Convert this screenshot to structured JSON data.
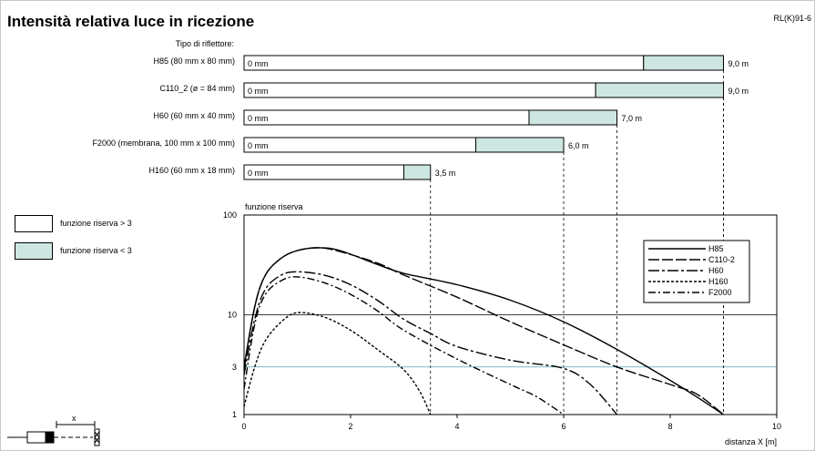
{
  "title": "Intensità relativa luce in ricezione",
  "code": "RL(K)91-6",
  "reflector_heading": "Tipo di riflettore:",
  "legend": {
    "high": "funzione riserva > 3",
    "low": "funzione riserva < 3"
  },
  "colors": {
    "reserve_low": "#cde6e1",
    "threshold_line": "#4aa3b8"
  },
  "range_bars": [
    {
      "name": "H85 (80 mm x 80 mm)",
      "start": "0 mm",
      "end_label": "9,0 m",
      "max_m": 9.0,
      "reserve3_m": 7.5
    },
    {
      "name": "C110_2 (ø = 84 mm)",
      "start": "0 mm",
      "end_label": "9,0 m",
      "max_m": 9.0,
      "reserve3_m": 6.6
    },
    {
      "name": "H60 (60 mm x 40 mm)",
      "start": "0 mm",
      "end_label": "7,0 m",
      "max_m": 7.0,
      "reserve3_m": 5.35
    },
    {
      "name": "F2000 (membrana, 100 mm x 100 mm)",
      "start": "0 mm",
      "end_label": "6,0 m",
      "max_m": 6.0,
      "reserve3_m": 4.35
    },
    {
      "name": "H160 (60 mm x 18 mm)",
      "start": "0 mm",
      "end_label": "3,5 m",
      "max_m": 3.5,
      "reserve3_m": 3.0
    }
  ],
  "chart_data": {
    "type": "line",
    "ylabel": "funzione riserva",
    "xlabel": "distanza X [m]",
    "xlim": [
      0,
      10
    ],
    "ylim": [
      1,
      100
    ],
    "yscale": "log",
    "xticks": [
      0,
      2,
      4,
      6,
      8,
      10
    ],
    "yticks": [
      1,
      3,
      10,
      100
    ],
    "threshold": 3,
    "legend_position": "top-right",
    "series": [
      {
        "name": "H85",
        "dash": "",
        "x": [
          0,
          0.2,
          0.4,
          0.7,
          1.0,
          1.4,
          1.8,
          2.5,
          3.0,
          4.0,
          5.0,
          6.0,
          7.0,
          8.0,
          8.5,
          9.0
        ],
        "y": [
          3,
          12,
          25,
          37,
          44,
          47,
          44,
          32,
          26,
          20,
          14,
          8.5,
          4.5,
          2.2,
          1.5,
          1
        ]
      },
      {
        "name": "C110-2",
        "dash": "12,3",
        "x": [
          0,
          0.2,
          0.4,
          0.7,
          1.0,
          1.4,
          1.8,
          2.5,
          3.0,
          4.0,
          5.0,
          6.0,
          7.0,
          8.0,
          8.5,
          9.0
        ],
        "y": [
          2.8,
          12,
          25,
          37,
          44,
          47,
          43,
          33,
          25,
          15,
          8.5,
          5,
          3,
          2,
          1.6,
          1
        ]
      },
      {
        "name": "H60",
        "dash": "12,3,3,3",
        "x": [
          0,
          0.2,
          0.4,
          0.7,
          1.0,
          1.5,
          2.0,
          2.5,
          3.0,
          3.5,
          4.0,
          5.0,
          6.0,
          6.5,
          7.0
        ],
        "y": [
          2.5,
          9,
          18,
          25,
          27,
          25,
          20,
          14,
          9,
          6.5,
          4.8,
          3.5,
          2.9,
          2,
          1
        ]
      },
      {
        "name": "H160",
        "dash": "3,2",
        "x": [
          0,
          0.2,
          0.4,
          0.7,
          1.0,
          1.5,
          2.0,
          2.5,
          3.0,
          3.3,
          3.5
        ],
        "y": [
          1.2,
          3,
          5.5,
          8.5,
          10.5,
          9.5,
          7,
          4.5,
          2.8,
          1.7,
          1
        ]
      },
      {
        "name": "F2000",
        "dash": "8,3,2,3",
        "x": [
          0,
          0.2,
          0.4,
          0.7,
          1.0,
          1.5,
          2.0,
          2.5,
          3.0,
          4.0,
          5.0,
          5.5,
          6.0
        ],
        "y": [
          1.8,
          8,
          16,
          22,
          24,
          21,
          16,
          11,
          7,
          3.6,
          2,
          1.5,
          1
        ]
      }
    ]
  }
}
